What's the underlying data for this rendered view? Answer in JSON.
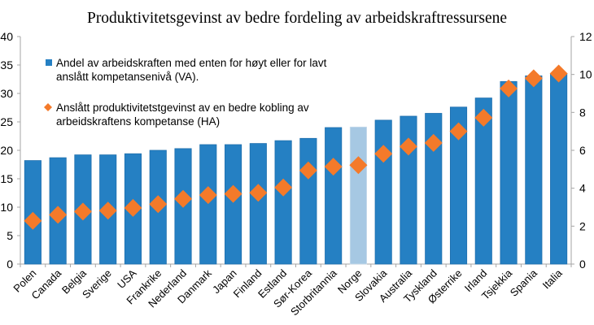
{
  "chart_data": {
    "type": "bar",
    "title": "Produktivitetsgevinst av bedre fordeling av arbeidskraftressursene",
    "xlabel": "",
    "ylabel": "",
    "ylabel_right": "",
    "categories": [
      "Polen",
      "Canada",
      "Belgia",
      "Sverige",
      "USA",
      "Frankrike",
      "Nederland",
      "Danmark",
      "Japan",
      "Finland",
      "Estland",
      "Sør-Korea",
      "Storbritannia",
      "Norge",
      "Slovakia",
      "Australia",
      "Tyskland",
      "Østerrike",
      "Irland",
      "Tsjekkia",
      "Spania",
      "Italia"
    ],
    "highlight_category": "Norge",
    "ylim": [
      0,
      40
    ],
    "yticks": [
      0,
      5,
      10,
      15,
      20,
      25,
      30,
      35,
      40
    ],
    "ylim_right": [
      0,
      12
    ],
    "yticks_right": [
      0,
      2,
      4,
      6,
      8,
      10,
      12
    ],
    "grid": false,
    "legend_position": "top-left",
    "series": [
      {
        "name": "Andel av arbeidskraften med enten for høyt eller for lavt anslått kompetansenivå (VA).",
        "legend_lines": [
          "Andel av arbeidskraften med enten for høyt eller for lavt",
          "anslått kompetansenivå (VA)."
        ],
        "type": "bar",
        "axis": "left",
        "color": "#2580C3",
        "highlight_color": "#A6C8E3",
        "values": [
          18.2,
          18.7,
          19.2,
          19.2,
          19.4,
          20.0,
          20.3,
          21.0,
          21.0,
          21.2,
          21.7,
          22.1,
          24.0,
          24.1,
          25.3,
          26.0,
          26.5,
          27.6,
          29.2,
          32.1,
          33.1,
          33.5
        ]
      },
      {
        "name": "Anslått produktivitetstgevinst av en bedre kobling av arbeidskraftens kompetanse (HA)",
        "legend_lines": [
          "Anslått produktivitetstgevinst av en bedre kobling av",
          "arbeidskraftens kompetanse (HA)"
        ],
        "type": "scatter",
        "marker": "diamond",
        "axis": "right",
        "color": "#F47A2A",
        "values": [
          2.28,
          2.6,
          2.77,
          2.82,
          2.96,
          3.16,
          3.44,
          3.64,
          3.7,
          3.76,
          4.04,
          4.94,
          5.14,
          5.22,
          5.82,
          6.2,
          6.39,
          7.0,
          7.72,
          9.26,
          9.8,
          10.05
        ]
      }
    ]
  }
}
